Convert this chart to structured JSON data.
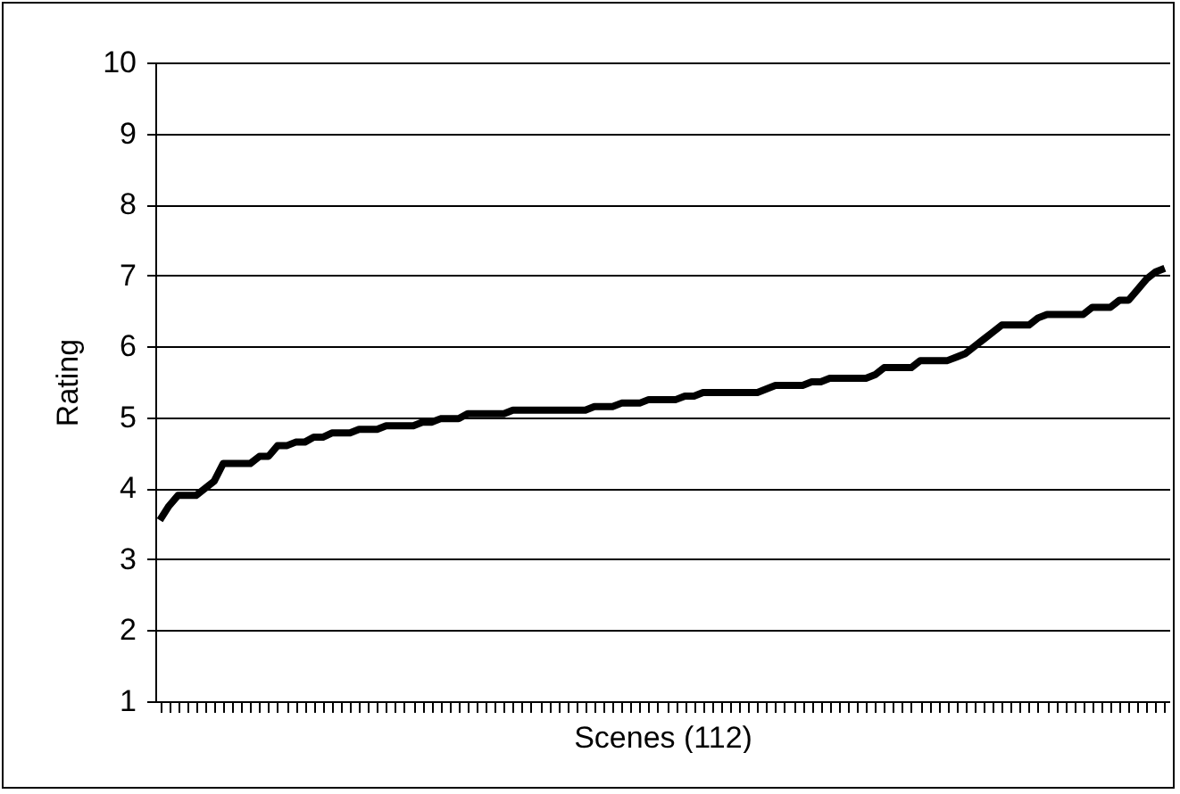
{
  "chart_data": {
    "type": "line",
    "xlabel": "Scenes (112)",
    "ylabel": "Rating",
    "categories": [
      null,
      null,
      null,
      null,
      null,
      null,
      null,
      null,
      null,
      null,
      null,
      null,
      null,
      null,
      null,
      null,
      null,
      null,
      null,
      null,
      null,
      null,
      null,
      null,
      null,
      null,
      null,
      null,
      null,
      null,
      null,
      null,
      null,
      null,
      null,
      null,
      null,
      null,
      null,
      null,
      null,
      null,
      null,
      null,
      null,
      null,
      null,
      null,
      null,
      null,
      null,
      null,
      null,
      null,
      null,
      null,
      null,
      null,
      null,
      null,
      null,
      null,
      null,
      null,
      null,
      null,
      null,
      null,
      null,
      null,
      null,
      null,
      null,
      null,
      null,
      null,
      null,
      null,
      null,
      null,
      null,
      null,
      null,
      null,
      null,
      null,
      null,
      null,
      null,
      null,
      null,
      null,
      null,
      null,
      null,
      null,
      null,
      null,
      null,
      null,
      null,
      null,
      null,
      null,
      null,
      null,
      null,
      null,
      null,
      null,
      null,
      null
    ],
    "series": [
      {
        "color": "#000000",
        "values": [
          3.55,
          3.75,
          3.9,
          3.9,
          3.9,
          4.0,
          4.1,
          4.35,
          4.35,
          4.35,
          4.35,
          4.45,
          4.45,
          4.6,
          4.6,
          4.65,
          4.65,
          4.72,
          4.72,
          4.78,
          4.78,
          4.78,
          4.83,
          4.83,
          4.83,
          4.88,
          4.88,
          4.88,
          4.88,
          4.93,
          4.93,
          4.98,
          4.98,
          4.98,
          5.05,
          5.05,
          5.05,
          5.05,
          5.05,
          5.1,
          5.1,
          5.1,
          5.1,
          5.1,
          5.1,
          5.1,
          5.1,
          5.1,
          5.15,
          5.15,
          5.15,
          5.2,
          5.2,
          5.2,
          5.25,
          5.25,
          5.25,
          5.25,
          5.3,
          5.3,
          5.35,
          5.35,
          5.35,
          5.35,
          5.35,
          5.35,
          5.35,
          5.4,
          5.45,
          5.45,
          5.45,
          5.45,
          5.5,
          5.5,
          5.55,
          5.55,
          5.55,
          5.55,
          5.55,
          5.6,
          5.7,
          5.7,
          5.7,
          5.7,
          5.8,
          5.8,
          5.8,
          5.8,
          5.85,
          5.9,
          6.0,
          6.1,
          6.2,
          6.3,
          6.3,
          6.3,
          6.3,
          6.4,
          6.45,
          6.45,
          6.45,
          6.45,
          6.45,
          6.55,
          6.55,
          6.55,
          6.65,
          6.65,
          6.8,
          6.95,
          7.05,
          7.1
        ]
      }
    ],
    "ylim": [
      1,
      10
    ],
    "yticks": [
      1,
      2,
      3,
      4,
      5,
      6,
      7,
      8,
      9,
      10
    ],
    "grid": "y",
    "tick_labels": "y",
    "marker": "none",
    "line_style": "solid"
  }
}
